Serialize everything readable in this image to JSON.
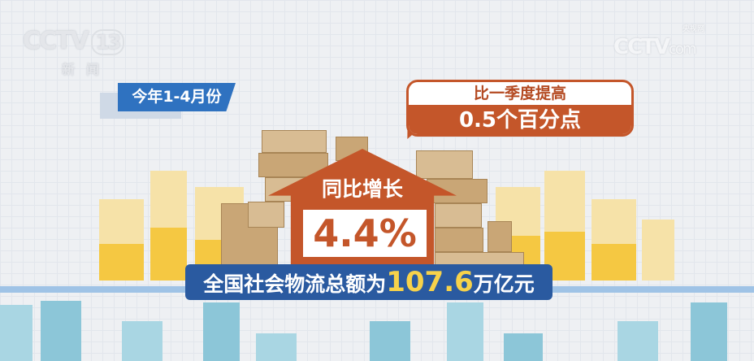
{
  "logos": {
    "channel": {
      "brand": "CCTV",
      "number": "13",
      "subtitle": "新闻"
    },
    "site": {
      "brand": "CCTV",
      "domain": "com",
      "chinese": "央视网"
    }
  },
  "period_tag": "今年1-4月份",
  "comparison_bubble": {
    "line1": "比一季度提高",
    "line2": "0.5个百分点"
  },
  "growth": {
    "label": "同比增长",
    "value": "4.4%"
  },
  "headline": {
    "prefix": "全国社会物流总额为",
    "value": "107.6",
    "suffix": "万亿元"
  },
  "colors": {
    "accent": "#c4562a",
    "banner": "#2a5aa0",
    "tag": "#2f72c0",
    "highlight": "#f7d24a",
    "bars": "#f5c842",
    "buildings": "#a9d6e3"
  }
}
